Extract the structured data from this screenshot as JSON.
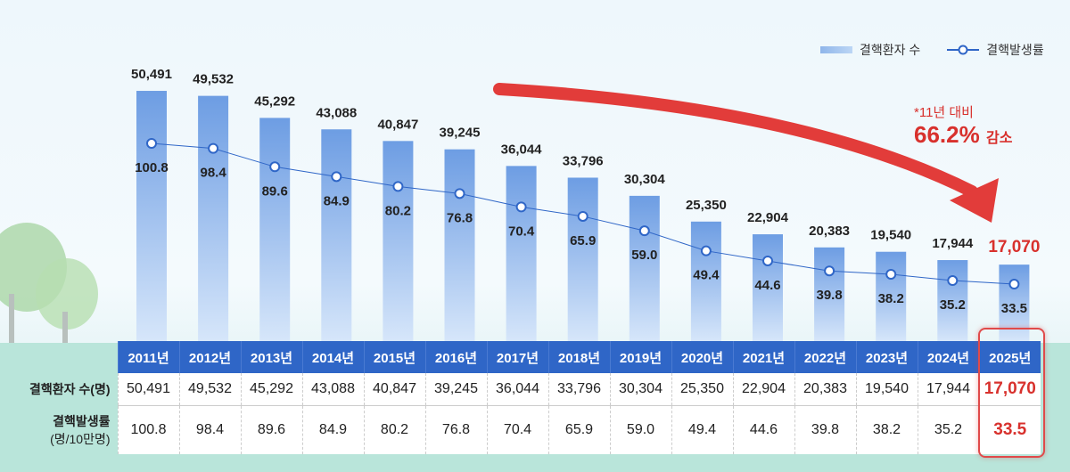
{
  "chart_data": {
    "type": "bar+line",
    "categories": [
      "2011년",
      "2012년",
      "2013년",
      "2014년",
      "2015년",
      "2016년",
      "2017년",
      "2018년",
      "2019년",
      "2020년",
      "2021년",
      "2022년",
      "2023년",
      "2024년",
      "2025년"
    ],
    "series": [
      {
        "name": "결핵환자 수",
        "type": "bar",
        "values": [
          50491,
          49532,
          45292,
          43088,
          40847,
          39245,
          36044,
          33796,
          30304,
          25350,
          22904,
          20383,
          19540,
          17944,
          17070
        ],
        "labels": [
          "50,491",
          "49,532",
          "45,292",
          "43,088",
          "40,847",
          "39,245",
          "36,044",
          "33,796",
          "30,304",
          "25,350",
          "22,904",
          "20,383",
          "19,540",
          "17,944",
          "17,070"
        ]
      },
      {
        "name": "결핵발생률",
        "type": "line",
        "values": [
          100.8,
          98.4,
          89.6,
          84.9,
          80.2,
          76.8,
          70.4,
          65.9,
          59.0,
          49.4,
          44.6,
          39.8,
          38.2,
          35.2,
          33.5
        ],
        "labels": [
          "100.8",
          "98.4",
          "89.6",
          "84.9",
          "80.2",
          "76.8",
          "70.4",
          "65.9",
          "59.0",
          "49.4",
          "44.6",
          "39.8",
          "38.2",
          "35.2",
          "33.5"
        ]
      }
    ],
    "highlight_category": "2025년",
    "legend": "top-right",
    "annotation": {
      "line1": "*11년 대비",
      "value": "66.2%",
      "suffix": "감소"
    },
    "colors": {
      "bar": "#7ea9e6",
      "line": "#2f66c7",
      "highlight": "#d8312d",
      "header": "#2f66c7"
    }
  },
  "table": {
    "row1_label": "결핵환자 수(명)",
    "row2_label": "결핵발생률",
    "row2_sub": "(명/10만명)"
  }
}
